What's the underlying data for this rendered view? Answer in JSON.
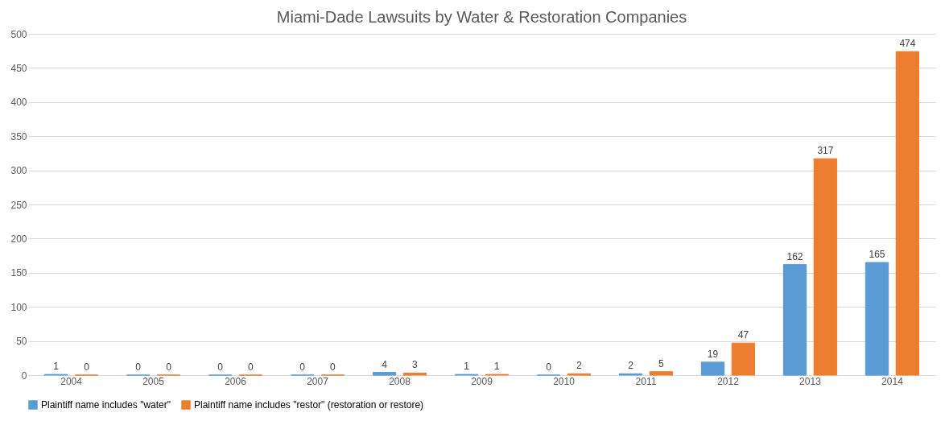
{
  "chart_data": {
    "type": "bar",
    "title": "Miami-Dade Lawsuits by Water & Restoration Companies",
    "categories": [
      "2004",
      "2005",
      "2006",
      "2007",
      "2008",
      "2009",
      "2010",
      "2011",
      "2012",
      "2013",
      "2014"
    ],
    "series": [
      {
        "name": "Plaintiff name includes \"water\"",
        "color": "#5b9bd5",
        "values": [
          1,
          0,
          0,
          0,
          4,
          1,
          0,
          2,
          19,
          162,
          165
        ]
      },
      {
        "name": "Plaintiff name includes \"restor\" (restoration or restore)",
        "color": "#ed7d31",
        "values": [
          0,
          0,
          0,
          0,
          3,
          1,
          2,
          5,
          47,
          317,
          474
        ]
      }
    ],
    "ylim": [
      0,
      500
    ],
    "yticks": [
      0,
      50,
      100,
      150,
      200,
      250,
      300,
      350,
      400,
      450,
      500
    ],
    "grid": "y",
    "legend": "bottom",
    "data_labels": true
  }
}
